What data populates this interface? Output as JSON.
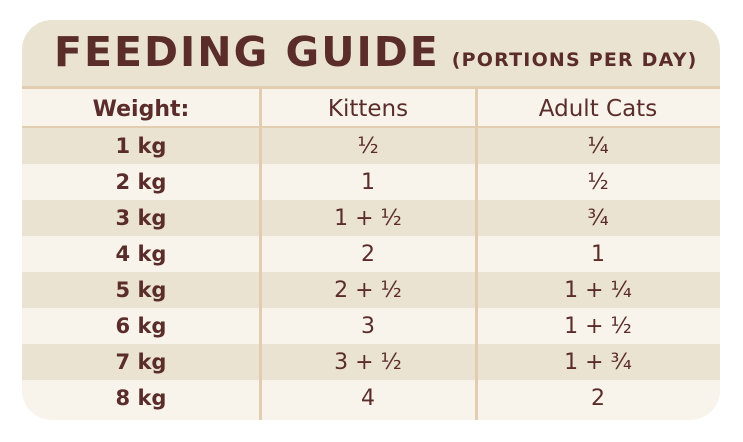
{
  "title": "FEEDING GUIDE",
  "subtitle": "(PORTIONS PER DAY)",
  "columns": [
    "Weight:",
    "Kittens",
    "Adult Cats"
  ],
  "rows": [
    [
      "1 kg",
      "½",
      "¼"
    ],
    [
      "2 kg",
      "1",
      "½"
    ],
    [
      "3 kg",
      "1 + ½",
      "¾"
    ],
    [
      "4 kg",
      "2",
      "1"
    ],
    [
      "5 kg",
      "2 + ½",
      "1 + ¼"
    ],
    [
      "6 kg",
      "3",
      "1 + ½"
    ],
    [
      "7 kg",
      "3 + ½",
      "1 + ¾"
    ],
    [
      "8 kg",
      "4",
      "2"
    ]
  ],
  "colors": {
    "text": "#5a2d2a",
    "shade": "#ebe3d2",
    "light": "#f8f4ec",
    "divider": "#e3cdb0"
  }
}
